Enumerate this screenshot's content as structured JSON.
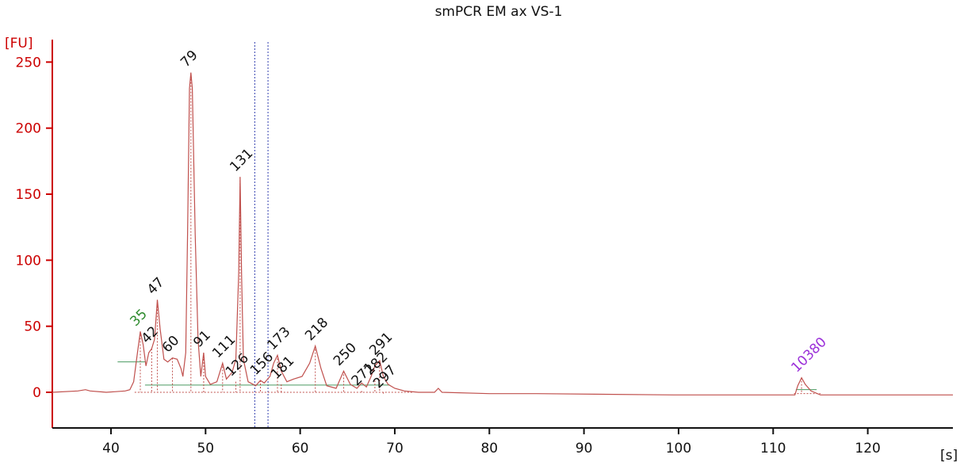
{
  "chart_data": {
    "type": "line",
    "title": "smPCR EM ax VS-1",
    "ylabel": "[FU]",
    "xlabel": "[s]",
    "xlim": [
      33.8,
      129
    ],
    "ylim": [
      -27,
      270
    ],
    "x_ticks": [
      40,
      50,
      60,
      70,
      80,
      90,
      100,
      110,
      120
    ],
    "y_ticks": [
      0,
      50,
      100,
      150,
      200,
      250
    ],
    "grid": false,
    "colors": {
      "trace": "#c0504d",
      "axis": "#cc0000",
      "baseline": "#4a9a60",
      "marker_lines": "#3340b0",
      "label_default": "#111111",
      "label_lower_marker": "#2e8b2e",
      "label_upper_marker": "#9b30d9"
    },
    "series": [
      {
        "points": [
          [
            33.8,
            0
          ],
          [
            36.5,
            1
          ],
          [
            37.3,
            2
          ],
          [
            37.8,
            1
          ],
          [
            39.5,
            0
          ],
          [
            40.5,
            0.5
          ],
          [
            41.5,
            1
          ],
          [
            42.0,
            2
          ],
          [
            42.4,
            8
          ],
          [
            42.8,
            30
          ],
          [
            43.1,
            46
          ],
          [
            43.4,
            36
          ],
          [
            43.7,
            20
          ],
          [
            44.0,
            30
          ],
          [
            44.3,
            33
          ],
          [
            44.6,
            40
          ],
          [
            44.9,
            70
          ],
          [
            45.2,
            48
          ],
          [
            45.6,
            25
          ],
          [
            46.0,
            23
          ],
          [
            46.5,
            26
          ],
          [
            47.0,
            25
          ],
          [
            47.4,
            18
          ],
          [
            47.6,
            12
          ],
          [
            47.9,
            30
          ],
          [
            48.1,
            120
          ],
          [
            48.3,
            230
          ],
          [
            48.45,
            242
          ],
          [
            48.6,
            230
          ],
          [
            48.9,
            120
          ],
          [
            49.2,
            40
          ],
          [
            49.5,
            12
          ],
          [
            49.8,
            30
          ],
          [
            50.0,
            12
          ],
          [
            50.5,
            6
          ],
          [
            51.2,
            8
          ],
          [
            51.8,
            22
          ],
          [
            52.2,
            10
          ],
          [
            52.8,
            15
          ],
          [
            53.2,
            25
          ],
          [
            53.5,
            90
          ],
          [
            53.65,
            163
          ],
          [
            53.8,
            90
          ],
          [
            54.0,
            25
          ],
          [
            54.5,
            8
          ],
          [
            55.3,
            5
          ],
          [
            55.8,
            9
          ],
          [
            56.2,
            7
          ],
          [
            56.8,
            12
          ],
          [
            57.2,
            22
          ],
          [
            57.6,
            28
          ],
          [
            58.0,
            16
          ],
          [
            58.6,
            8
          ],
          [
            59.3,
            10
          ],
          [
            60.2,
            12
          ],
          [
            61.0,
            22
          ],
          [
            61.6,
            35
          ],
          [
            62.2,
            18
          ],
          [
            62.8,
            5
          ],
          [
            63.8,
            3
          ],
          [
            64.6,
            16
          ],
          [
            65.3,
            6
          ],
          [
            66.0,
            3
          ],
          [
            66.5,
            7
          ],
          [
            67.0,
            4
          ],
          [
            67.5,
            12
          ],
          [
            67.9,
            20
          ],
          [
            68.4,
            24
          ],
          [
            68.8,
            12
          ],
          [
            69.3,
            6
          ],
          [
            70.0,
            3
          ],
          [
            71.0,
            1
          ],
          [
            72.5,
            0
          ],
          [
            74.2,
            0
          ],
          [
            74.6,
            3
          ],
          [
            75.0,
            0
          ],
          [
            80.0,
            -1
          ],
          [
            82.0,
            -1
          ],
          [
            85.0,
            -1
          ],
          [
            99.5,
            -2
          ],
          [
            100.0,
            -2
          ],
          [
            105.0,
            -2
          ],
          [
            112.3,
            -2
          ],
          [
            112.6,
            5
          ],
          [
            113.0,
            11
          ],
          [
            113.4,
            6
          ],
          [
            114.0,
            1
          ],
          [
            115.0,
            -2
          ],
          [
            120.0,
            -2
          ],
          [
            129.0,
            -2
          ]
        ]
      }
    ],
    "peaks": [
      {
        "label": "35",
        "x": 43.1,
        "y": 46,
        "color": "label_lower_marker"
      },
      {
        "label": "42",
        "x": 44.3,
        "y": 33,
        "color": "label_default"
      },
      {
        "label": "47",
        "x": 44.9,
        "y": 70,
        "color": "label_default"
      },
      {
        "label": "60",
        "x": 46.5,
        "y": 26,
        "color": "label_default"
      },
      {
        "label": "79",
        "x": 48.45,
        "y": 242,
        "color": "label_default"
      },
      {
        "label": "91",
        "x": 49.8,
        "y": 30,
        "color": "label_default"
      },
      {
        "label": "111",
        "x": 51.8,
        "y": 22,
        "color": "label_default"
      },
      {
        "label": "126",
        "x": 53.2,
        "y": 8,
        "color": "label_default"
      },
      {
        "label": "131",
        "x": 53.65,
        "y": 163,
        "color": "label_default"
      },
      {
        "label": "156",
        "x": 55.8,
        "y": 9,
        "color": "label_default"
      },
      {
        "label": "173",
        "x": 57.6,
        "y": 28,
        "color": "label_default"
      },
      {
        "label": "181",
        "x": 58.0,
        "y": 6,
        "color": "label_default"
      },
      {
        "label": "218",
        "x": 61.6,
        "y": 35,
        "color": "label_default"
      },
      {
        "label": "250",
        "x": 64.6,
        "y": 16,
        "color": "label_default"
      },
      {
        "label": "271",
        "x": 66.5,
        "y": 1,
        "color": "label_default"
      },
      {
        "label": "282",
        "x": 67.9,
        "y": 9,
        "color": "label_default"
      },
      {
        "label": "291",
        "x": 68.4,
        "y": 24,
        "color": "label_default"
      },
      {
        "label": "297",
        "x": 68.8,
        "y": -1,
        "color": "label_default"
      },
      {
        "label": "10380",
        "x": 113.0,
        "y": 11,
        "color": "label_upper_marker"
      }
    ],
    "marker_lines_x": [
      55.2,
      56.6
    ]
  }
}
